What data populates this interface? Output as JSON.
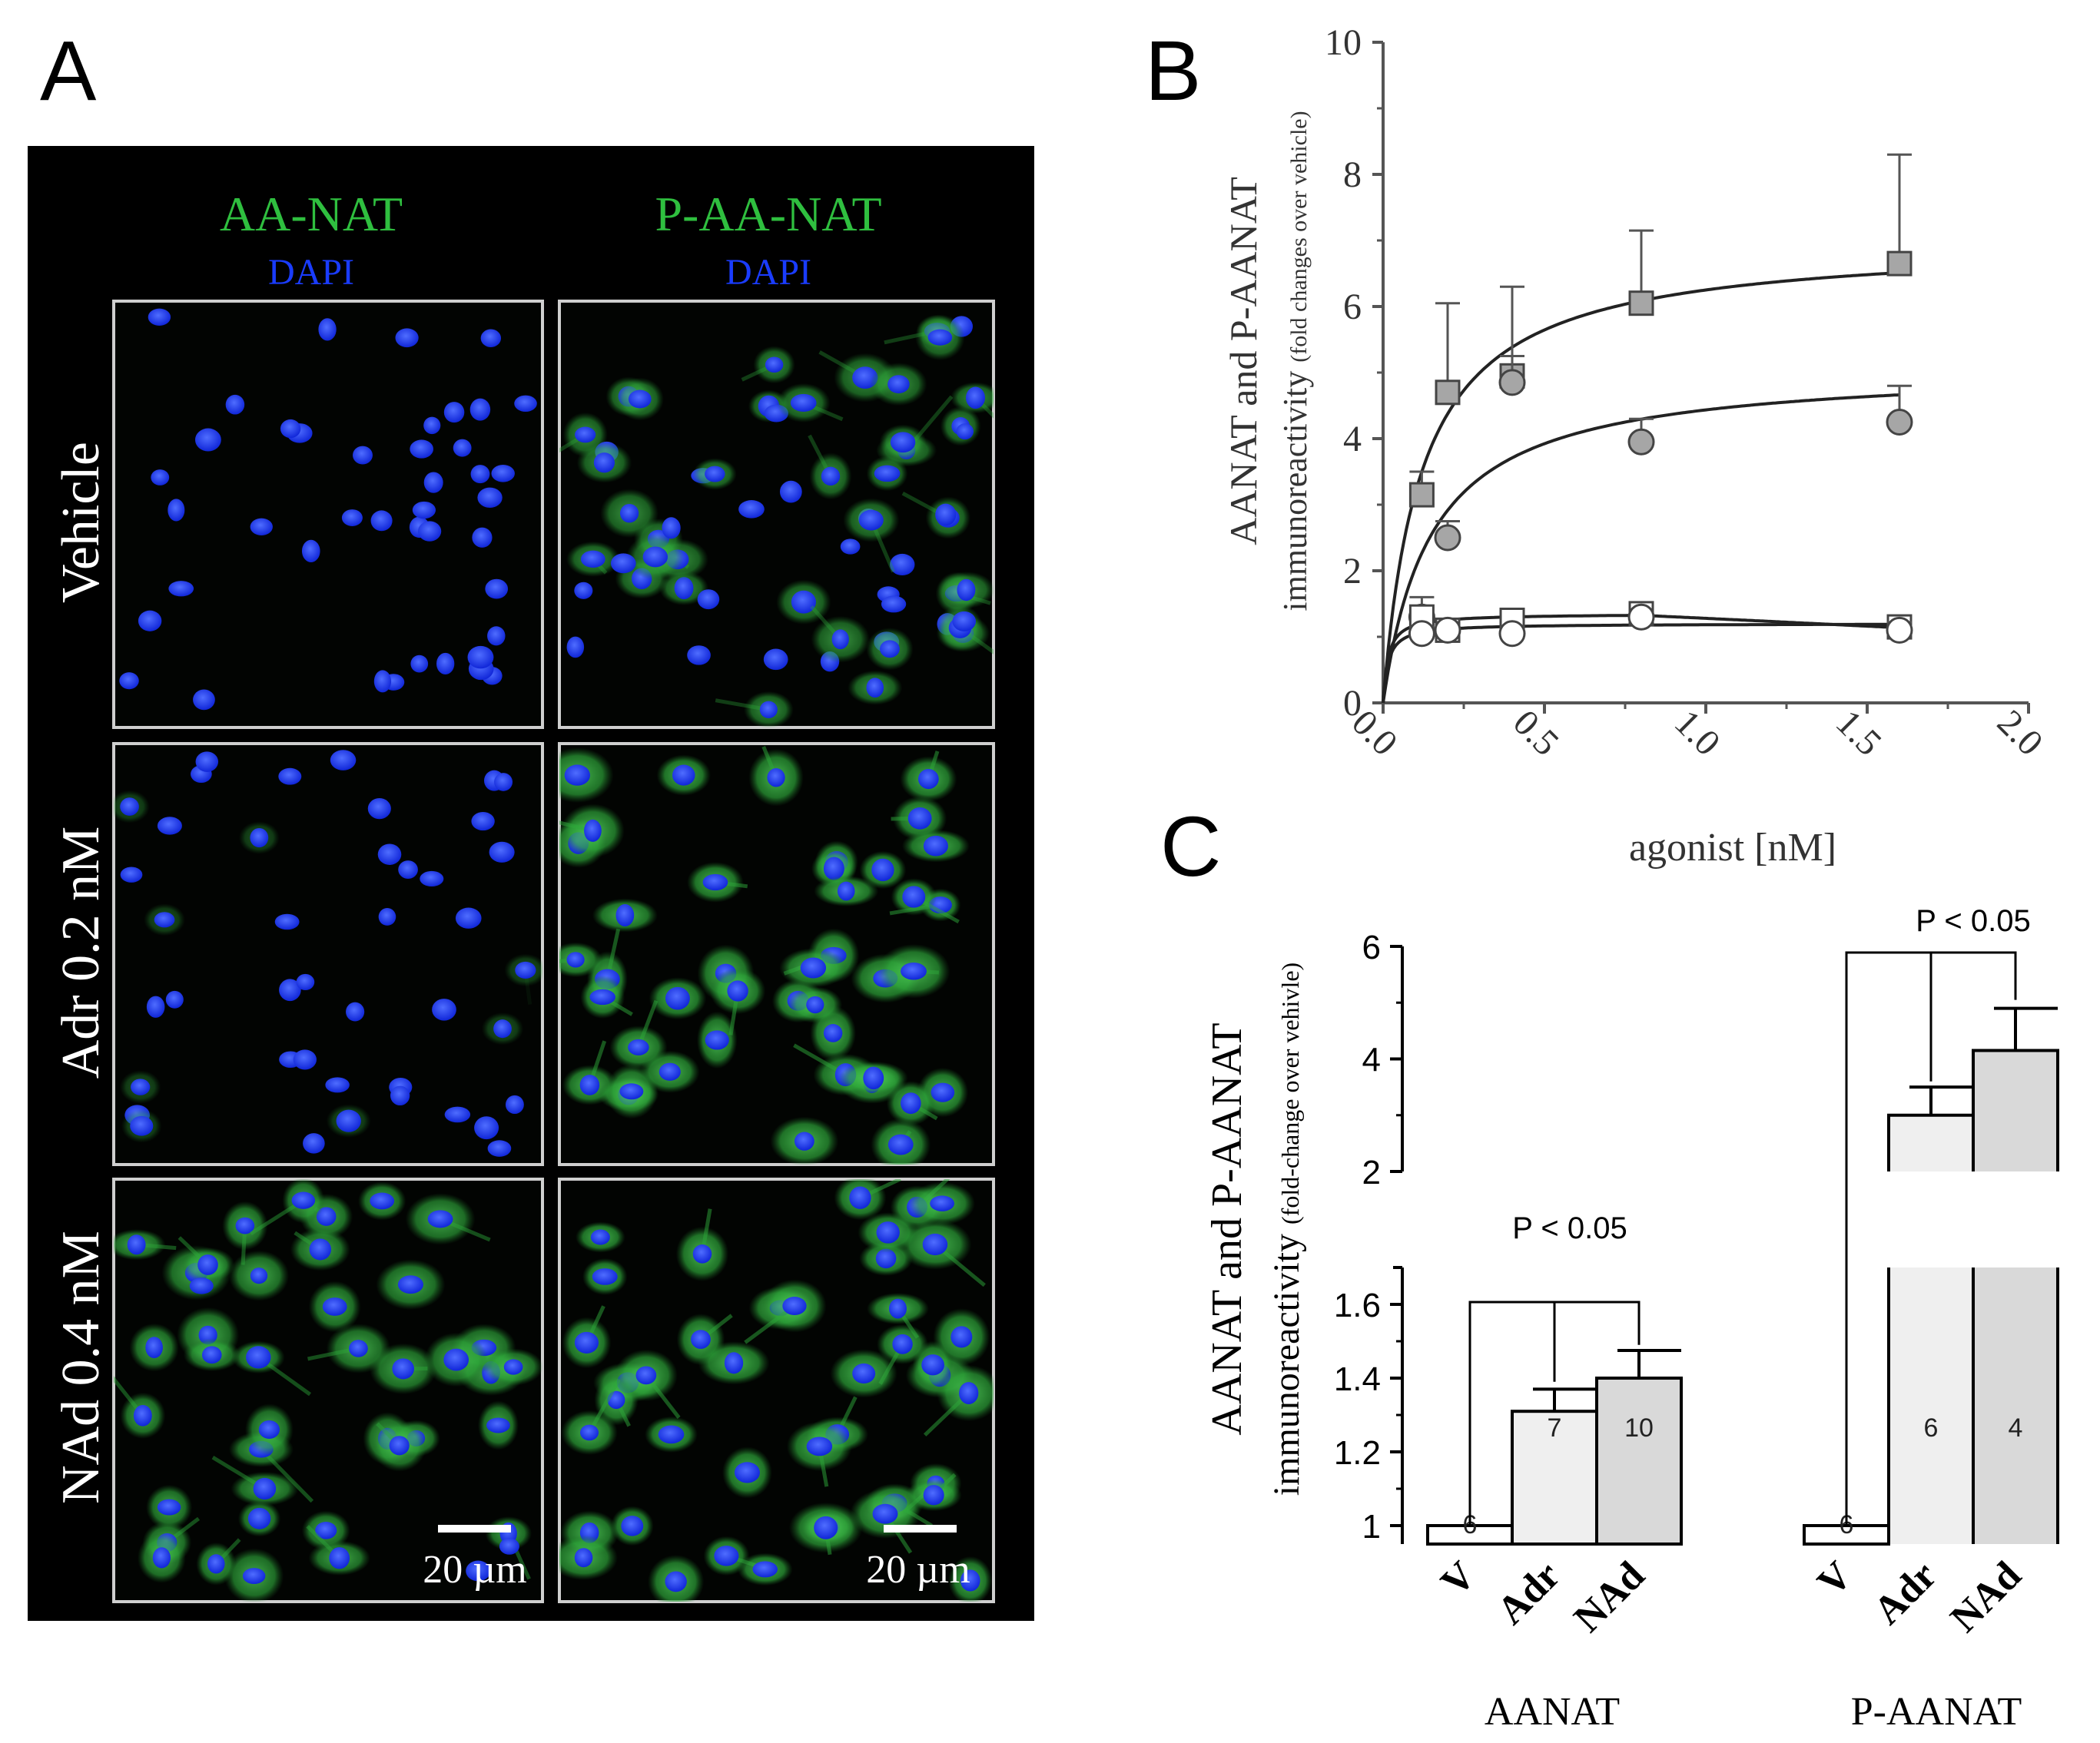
{
  "panel_a": {
    "letter": "A",
    "columns": [
      {
        "title": "AA-NAT",
        "subtitle": "DAPI"
      },
      {
        "title": "P-AA-NAT",
        "subtitle": "DAPI"
      }
    ],
    "rows": [
      "Vehicle",
      "Adr 0.2 nM",
      "NAd 0.4 nM"
    ],
    "scale_bars": [
      "20 µm",
      "20 µm"
    ],
    "colors": {
      "marker": "#2fbf3f",
      "nuclei": "#1a3cff",
      "background": "#000000"
    }
  },
  "chart_data": [
    {
      "panel": "B",
      "type": "scatter",
      "ylabel_main": "AANAT and P-AANAT",
      "ylabel_sub_main": "immunoreactivity",
      "ylabel_sub_small": "(fold changes over vehicle)",
      "xlabel": "agonist [nM]",
      "xlim": [
        0,
        2.0
      ],
      "ylim": [
        0,
        10
      ],
      "xticks": [
        "0.0",
        "0.5",
        "1.0",
        "1.5",
        "2.0"
      ],
      "yticks": [
        "0",
        "2",
        "4",
        "6",
        "8",
        "10"
      ],
      "series": [
        {
          "marker": "square",
          "fill": "#a6a6a6",
          "x": [
            0.12,
            0.2,
            0.4,
            0.8,
            1.6
          ],
          "y": [
            3.15,
            4.7,
            4.95,
            6.05,
            6.65
          ],
          "err": [
            0.35,
            1.35,
            1.35,
            1.1,
            1.65
          ]
        },
        {
          "marker": "circle",
          "fill": "#a6a6a6",
          "x": [
            0.12,
            0.2,
            0.4,
            0.8,
            1.6
          ],
          "y": [
            1.3,
            2.5,
            4.85,
            3.95,
            4.25
          ],
          "err": [
            0.3,
            0.25,
            0.4,
            0.35,
            0.55
          ]
        },
        {
          "marker": "square",
          "fill": "#ffffff",
          "x": [
            0.12,
            0.2,
            0.4,
            0.8,
            1.6
          ],
          "y": [
            1.3,
            1.1,
            1.25,
            1.35,
            1.15
          ],
          "err": [
            0.1,
            0.08,
            0.1,
            0.08,
            0.12
          ]
        },
        {
          "marker": "circle",
          "fill": "#ffffff",
          "x": [
            0.12,
            0.2,
            0.4,
            0.8,
            1.6
          ],
          "y": [
            1.05,
            1.1,
            1.05,
            1.3,
            1.1
          ],
          "err": [
            0.1,
            0.08,
            0.1,
            0.08,
            0.12
          ]
        }
      ],
      "fits": [
        {
          "vmax": 7.0,
          "kd": 0.12,
          "base": 0
        },
        {
          "vmax": 5.1,
          "kd": 0.15,
          "base": 0
        },
        {
          "vmax": 1.35,
          "kd": 0.015,
          "base": 0,
          "decline": 0.1
        },
        {
          "vmax": 1.2,
          "kd": 0.015,
          "base": 0
        }
      ]
    },
    {
      "panel": "C",
      "type": "bar",
      "ylabel_main": "AANAT and P-AANAT",
      "ylabel_sub_main": "immunoreactivity",
      "ylabel_sub_small": "(fold-change over vehivle)",
      "lower_axis": {
        "ylim": [
          0.95,
          1.7
        ],
        "ticks": [
          "1",
          "1.2",
          "1.4",
          "1.6"
        ]
      },
      "upper_axis": {
        "ylim": [
          2,
          6
        ],
        "ticks": [
          "2",
          "4",
          "6"
        ]
      },
      "groups": [
        {
          "name": "AANAT",
          "bars": [
            {
              "label": "V",
              "value": 1.0,
              "err": 0.0,
              "n": "6",
              "fill": "#ffffff"
            },
            {
              "label": "Adr",
              "value": 1.31,
              "err": 0.06,
              "n": "7",
              "fill": "#efefef"
            },
            {
              "label": "NAd",
              "value": 1.4,
              "err": 0.075,
              "n": "10",
              "fill": "#d9d9d9"
            }
          ],
          "significance": "P < 0.05"
        },
        {
          "name": "P-AANAT",
          "bars": [
            {
              "label": "V",
              "value": 1.0,
              "err": 0.0,
              "n": "6",
              "fill": "#ffffff"
            },
            {
              "label": "Adr",
              "value": 3.0,
              "err": 0.5,
              "n": "6",
              "fill": "#efefef"
            },
            {
              "label": "NAd",
              "value": 4.15,
              "err": 0.75,
              "n": "4",
              "fill": "#d9d9d9"
            }
          ],
          "significance": "P < 0.05"
        }
      ]
    }
  ],
  "labels": {
    "panel_b": "B",
    "panel_c": "C"
  }
}
